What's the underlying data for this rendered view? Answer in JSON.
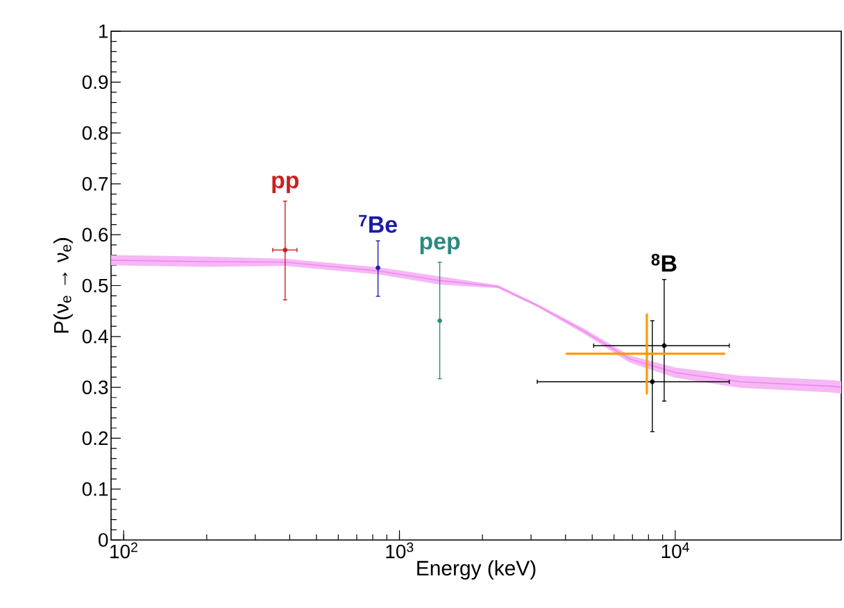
{
  "chart_data": {
    "type": "scatter",
    "xlabel": "Energy (keV)",
    "ylabel": "P(ν$_{e}$ → ν$_{e}$)",
    "log": "x",
    "xlim": [
      90,
      40000
    ],
    "ylim": [
      0,
      1
    ],
    "xticks": [
      {
        "value": 100,
        "label": "10$^{2}$"
      },
      {
        "value": 1000,
        "label": "10$^{3}$"
      },
      {
        "value": 10000,
        "label": "10$^{4}$"
      }
    ],
    "yticks": [
      0,
      0.1,
      0.2,
      0.3,
      0.4,
      0.5,
      0.6,
      0.7,
      0.8,
      0.9,
      1
    ],
    "marker": "circle",
    "series": [
      {
        "type": "line",
        "marker": "none",
        "color": "#ee88ee",
        "x": [
          90,
          200,
          385,
          836,
          1400,
          2275,
          3160,
          4650,
          6820,
          10000,
          17200,
          37100,
          40000
        ],
        "values": [
          0.55,
          0.547,
          0.546,
          0.529,
          0.51,
          0.498,
          0.461,
          0.411,
          0.356,
          0.329,
          0.311,
          0.302,
          0.3
        ],
        "lower": [
          0.54,
          0.537,
          0.539,
          0.522,
          0.502,
          0.495,
          0.458,
          0.406,
          0.349,
          0.319,
          0.299,
          0.29,
          0.288
        ],
        "upper": [
          0.56,
          0.557,
          0.553,
          0.536,
          0.518,
          0.501,
          0.464,
          0.416,
          0.363,
          0.339,
          0.323,
          0.314,
          0.312
        ]
      },
      {
        "name": "pp",
        "color": "#cc1f1f",
        "x": [
          385
        ],
        "values": [
          0.57
        ],
        "errors": [
          [
            0.472,
            0.666
          ]
        ],
        "xerrors": [
          [
            347,
            425
          ]
        ]
      },
      {
        "name": "$^{7}$Be",
        "color": "#1a1aaa",
        "x": [
          836
        ],
        "values": [
          0.535
        ],
        "errors": [
          [
            0.479,
            0.588
          ]
        ],
        "xerrors": [
          null
        ]
      },
      {
        "name": "pep",
        "color": "#2a8a80",
        "x": [
          1400
        ],
        "values": [
          0.431
        ],
        "errors": [
          [
            0.317,
            0.546
          ]
        ],
        "xerrors": [
          null
        ]
      },
      {
        "name": "$^{8}$B",
        "color": "#000000",
        "x": [
          9120,
          8260
        ],
        "values": [
          0.382,
          0.311
        ],
        "errors": [
          [
            0.273,
            0.512
          ],
          [
            0.213,
            0.431
          ]
        ],
        "xerrors": [
          [
            5060,
            15700
          ],
          [
            3160,
            15700
          ]
        ]
      },
      {
        "color": "#ff9900",
        "marker": "none",
        "x": [
          7890
        ],
        "values": [
          0.366
        ],
        "errors": [
          [
            0.286,
            0.445
          ]
        ],
        "xerrors": [
          [
            4010,
            15170
          ]
        ]
      }
    ]
  }
}
